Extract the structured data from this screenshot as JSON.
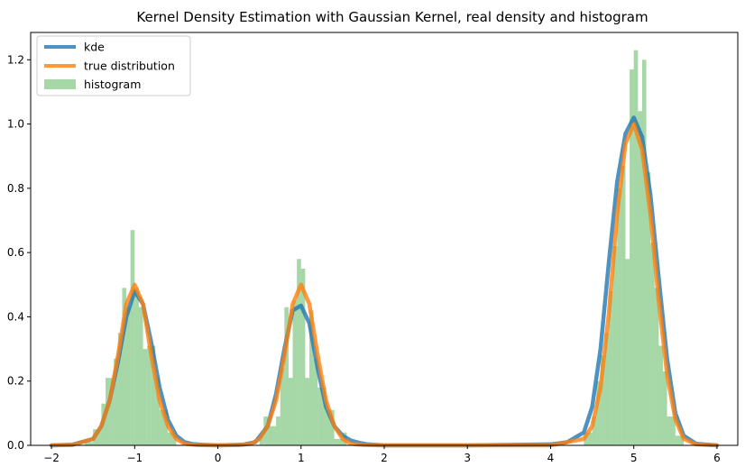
{
  "chart_data": {
    "type": "line",
    "title": "Kernel Density Estimation with Gaussian Kernel, real density and histogram",
    "xlabel": "",
    "ylabel": "",
    "xlim": [
      -2.25,
      6.25
    ],
    "ylim": [
      0,
      1.285
    ],
    "xticks": [
      -2,
      -1,
      0,
      1,
      2,
      3,
      4,
      5,
      6
    ],
    "yticks": [
      0.0,
      0.2,
      0.4,
      0.6,
      0.8,
      1.0,
      1.2
    ],
    "grid": false,
    "legend_position": "top-left",
    "series": [
      {
        "name": "kde",
        "color": "#1f77b4",
        "x": [
          -2.0,
          -1.75,
          -1.5,
          -1.4,
          -1.3,
          -1.2,
          -1.1,
          -1.0,
          -0.9,
          -0.8,
          -0.7,
          -0.6,
          -0.5,
          -0.4,
          -0.3,
          -0.2,
          0.0,
          0.3,
          0.45,
          0.6,
          0.7,
          0.8,
          0.9,
          1.0,
          1.1,
          1.2,
          1.3,
          1.4,
          1.5,
          1.6,
          1.7,
          1.8,
          2.0,
          3.0,
          4.0,
          4.2,
          4.4,
          4.5,
          4.6,
          4.7,
          4.8,
          4.9,
          5.0,
          5.1,
          5.2,
          5.3,
          5.4,
          5.5,
          5.6,
          5.75,
          6.0
        ],
        "y": [
          0.0,
          0.002,
          0.02,
          0.06,
          0.14,
          0.26,
          0.4,
          0.48,
          0.44,
          0.32,
          0.18,
          0.08,
          0.03,
          0.01,
          0.004,
          0.002,
          0.0,
          0.002,
          0.01,
          0.06,
          0.16,
          0.3,
          0.42,
          0.435,
          0.38,
          0.24,
          0.12,
          0.06,
          0.03,
          0.015,
          0.008,
          0.003,
          0.0,
          0.0,
          0.003,
          0.01,
          0.04,
          0.12,
          0.3,
          0.57,
          0.82,
          0.97,
          1.02,
          0.96,
          0.78,
          0.52,
          0.27,
          0.1,
          0.03,
          0.005,
          0.0
        ]
      },
      {
        "name": "true distribution",
        "color": "#ff7f0e",
        "x": [
          -2.0,
          -1.75,
          -1.5,
          -1.4,
          -1.3,
          -1.2,
          -1.1,
          -1.0,
          -0.9,
          -0.8,
          -0.7,
          -0.6,
          -0.5,
          -0.4,
          -0.25,
          0.0,
          0.25,
          0.4,
          0.5,
          0.6,
          0.7,
          0.8,
          0.9,
          1.0,
          1.1,
          1.2,
          1.3,
          1.4,
          1.5,
          1.6,
          1.75,
          2.0,
          3.0,
          4.0,
          4.4,
          4.5,
          4.6,
          4.7,
          4.8,
          4.9,
          5.0,
          5.1,
          5.2,
          5.3,
          5.4,
          5.5,
          5.6,
          5.75,
          6.0
        ],
        "y": [
          0.0,
          0.001,
          0.02,
          0.06,
          0.14,
          0.28,
          0.44,
          0.5,
          0.44,
          0.28,
          0.14,
          0.06,
          0.02,
          0.005,
          0.001,
          0.0,
          0.001,
          0.005,
          0.02,
          0.06,
          0.14,
          0.28,
          0.44,
          0.5,
          0.44,
          0.28,
          0.14,
          0.06,
          0.02,
          0.005,
          0.001,
          0.0,
          0.0,
          0.0,
          0.02,
          0.06,
          0.18,
          0.41,
          0.72,
          0.94,
          1.0,
          0.92,
          0.72,
          0.45,
          0.22,
          0.08,
          0.02,
          0.003,
          0.0
        ]
      }
    ],
    "histogram": {
      "name": "histogram",
      "color": "#2ca02c",
      "bins": [
        {
          "x0": -1.6,
          "x1": -1.5,
          "y": 0.01
        },
        {
          "x0": -1.5,
          "x1": -1.4,
          "y": 0.05
        },
        {
          "x0": -1.4,
          "x1": -1.35,
          "y": 0.13
        },
        {
          "x0": -1.35,
          "x1": -1.3,
          "y": 0.21
        },
        {
          "x0": -1.3,
          "x1": -1.25,
          "y": 0.21
        },
        {
          "x0": -1.25,
          "x1": -1.2,
          "y": 0.27
        },
        {
          "x0": -1.2,
          "x1": -1.15,
          "y": 0.35
        },
        {
          "x0": -1.15,
          "x1": -1.1,
          "y": 0.49
        },
        {
          "x0": -1.1,
          "x1": -1.05,
          "y": 0.43
        },
        {
          "x0": -1.05,
          "x1": -1.0,
          "y": 0.67
        },
        {
          "x0": -1.0,
          "x1": -0.95,
          "y": 0.49
        },
        {
          "x0": -0.95,
          "x1": -0.9,
          "y": 0.43
        },
        {
          "x0": -0.9,
          "x1": -0.85,
          "y": 0.3
        },
        {
          "x0": -0.85,
          "x1": -0.8,
          "y": 0.31
        },
        {
          "x0": -0.8,
          "x1": -0.75,
          "y": 0.31
        },
        {
          "x0": -0.75,
          "x1": -0.7,
          "y": 0.21
        },
        {
          "x0": -0.7,
          "x1": -0.6,
          "y": 0.11
        },
        {
          "x0": -0.6,
          "x1": -0.5,
          "y": 0.04
        },
        {
          "x0": 0.5,
          "x1": 0.55,
          "y": 0.03
        },
        {
          "x0": 0.55,
          "x1": 0.6,
          "y": 0.09
        },
        {
          "x0": 0.6,
          "x1": 0.7,
          "y": 0.06
        },
        {
          "x0": 0.7,
          "x1": 0.75,
          "y": 0.09
        },
        {
          "x0": 0.75,
          "x1": 0.8,
          "y": 0.24
        },
        {
          "x0": 0.8,
          "x1": 0.85,
          "y": 0.43
        },
        {
          "x0": 0.85,
          "x1": 0.9,
          "y": 0.21
        },
        {
          "x0": 0.9,
          "x1": 0.95,
          "y": 0.45
        },
        {
          "x0": 0.95,
          "x1": 1.0,
          "y": 0.58
        },
        {
          "x0": 1.0,
          "x1": 1.05,
          "y": 0.55
        },
        {
          "x0": 1.05,
          "x1": 1.1,
          "y": 0.21
        },
        {
          "x0": 1.1,
          "x1": 1.15,
          "y": 0.42
        },
        {
          "x0": 1.15,
          "x1": 1.2,
          "y": 0.27
        },
        {
          "x0": 1.2,
          "x1": 1.3,
          "y": 0.18
        },
        {
          "x0": 1.3,
          "x1": 1.4,
          "y": 0.11
        },
        {
          "x0": 1.4,
          "x1": 1.5,
          "y": 0.02
        },
        {
          "x0": 1.5,
          "x1": 1.55,
          "y": 0.04
        },
        {
          "x0": 4.4,
          "x1": 4.5,
          "y": 0.04
        },
        {
          "x0": 4.5,
          "x1": 4.55,
          "y": 0.09
        },
        {
          "x0": 4.55,
          "x1": 4.6,
          "y": 0.2
        },
        {
          "x0": 4.6,
          "x1": 4.65,
          "y": 0.28
        },
        {
          "x0": 4.65,
          "x1": 4.7,
          "y": 0.35
        },
        {
          "x0": 4.7,
          "x1": 4.75,
          "y": 0.48
        },
        {
          "x0": 4.75,
          "x1": 4.8,
          "y": 0.62
        },
        {
          "x0": 4.8,
          "x1": 4.85,
          "y": 0.8
        },
        {
          "x0": 4.85,
          "x1": 4.9,
          "y": 0.87
        },
        {
          "x0": 4.9,
          "x1": 4.95,
          "y": 0.58
        },
        {
          "x0": 4.95,
          "x1": 5.0,
          "y": 1.17
        },
        {
          "x0": 5.0,
          "x1": 5.05,
          "y": 1.23
        },
        {
          "x0": 5.05,
          "x1": 5.1,
          "y": 1.04
        },
        {
          "x0": 5.1,
          "x1": 5.15,
          "y": 1.2
        },
        {
          "x0": 5.15,
          "x1": 5.2,
          "y": 0.85
        },
        {
          "x0": 5.2,
          "x1": 5.25,
          "y": 0.63
        },
        {
          "x0": 5.25,
          "x1": 5.3,
          "y": 0.49
        },
        {
          "x0": 5.3,
          "x1": 5.35,
          "y": 0.31
        },
        {
          "x0": 5.35,
          "x1": 5.4,
          "y": 0.23
        },
        {
          "x0": 5.4,
          "x1": 5.5,
          "y": 0.09
        },
        {
          "x0": 5.5,
          "x1": 5.6,
          "y": 0.03
        }
      ]
    }
  }
}
